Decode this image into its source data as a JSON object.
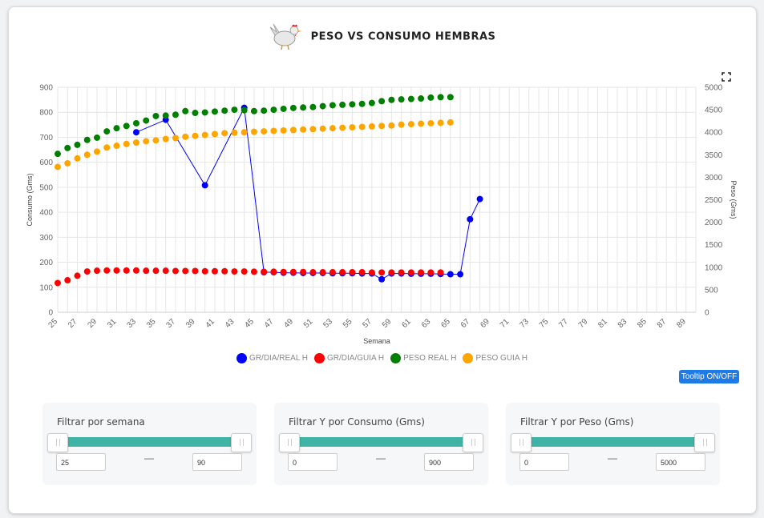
{
  "title": "PESO VS CONSUMO HEMBRAS",
  "tooltip_button": "Tooltip ON/OFF",
  "filters": [
    {
      "label": "Filtrar por semana",
      "min_value": "25",
      "max_value": "90",
      "separator": "—"
    },
    {
      "label": "Filtrar Y por Consumo (Gms)",
      "min_value": "0",
      "max_value": "900",
      "separator": "—"
    },
    {
      "label": "Filtrar Y por Peso (Gms)",
      "min_value": "0",
      "max_value": "5000",
      "separator": "—"
    }
  ],
  "chart_data": {
    "type": "line",
    "xlabel": "Semana",
    "ylabel": "Consumo (Gms)",
    "y2label": "Peso (Gms)",
    "xlim": [
      25,
      90
    ],
    "ylim": [
      0,
      900
    ],
    "y2lim": [
      0,
      5000
    ],
    "x_ticks": [
      25,
      27,
      29,
      31,
      33,
      35,
      37,
      39,
      41,
      43,
      45,
      47,
      49,
      51,
      53,
      55,
      57,
      59,
      61,
      63,
      65,
      67,
      69,
      71,
      73,
      75,
      77,
      79,
      81,
      83,
      85,
      87,
      89
    ],
    "y_ticks": [
      0,
      100,
      200,
      300,
      400,
      500,
      600,
      700,
      800,
      900
    ],
    "y2_ticks": [
      0,
      500,
      1000,
      1500,
      2000,
      2500,
      3000,
      3500,
      4000,
      4500,
      5000
    ],
    "legend_position": "bottom",
    "grid": true,
    "series": [
      {
        "name": "GR/DIA/REAL H",
        "color": "#0000ff",
        "axis": "left",
        "connect": true,
        "points": [
          [
            33,
            720
          ],
          [
            36,
            770
          ],
          [
            40,
            508
          ],
          [
            44,
            818
          ],
          [
            46,
            160
          ],
          [
            47,
            160
          ],
          [
            48,
            158
          ],
          [
            49,
            158
          ],
          [
            50,
            157
          ],
          [
            51,
            157
          ],
          [
            52,
            157
          ],
          [
            53,
            156
          ],
          [
            54,
            156
          ],
          [
            55,
            156
          ],
          [
            56,
            155
          ],
          [
            57,
            155
          ],
          [
            58,
            132
          ],
          [
            59,
            155
          ],
          [
            60,
            155
          ],
          [
            61,
            154
          ],
          [
            62,
            154
          ],
          [
            63,
            154
          ],
          [
            64,
            153
          ],
          [
            65,
            152
          ],
          [
            66,
            152
          ],
          [
            67,
            372
          ],
          [
            68,
            453
          ]
        ]
      },
      {
        "name": "GR/DIA/GUIA H",
        "color": "#ff0000",
        "axis": "left",
        "connect": false,
        "points": [
          [
            25,
            117
          ],
          [
            26,
            128
          ],
          [
            27,
            146
          ],
          [
            28,
            163
          ],
          [
            29,
            166
          ],
          [
            30,
            167
          ],
          [
            31,
            167
          ],
          [
            32,
            167
          ],
          [
            33,
            167
          ],
          [
            34,
            166
          ],
          [
            35,
            166
          ],
          [
            36,
            166
          ],
          [
            37,
            165
          ],
          [
            38,
            165
          ],
          [
            39,
            165
          ],
          [
            40,
            164
          ],
          [
            41,
            164
          ],
          [
            42,
            164
          ],
          [
            43,
            163
          ],
          [
            44,
            163
          ],
          [
            45,
            162
          ],
          [
            46,
            162
          ],
          [
            47,
            162
          ],
          [
            48,
            161
          ],
          [
            49,
            161
          ],
          [
            50,
            161
          ],
          [
            51,
            160
          ],
          [
            52,
            160
          ],
          [
            53,
            160
          ],
          [
            54,
            160
          ],
          [
            55,
            160
          ],
          [
            56,
            160
          ],
          [
            57,
            159
          ],
          [
            58,
            159
          ],
          [
            59,
            159
          ],
          [
            60,
            159
          ],
          [
            61,
            159
          ],
          [
            62,
            159
          ],
          [
            63,
            159
          ],
          [
            64,
            159
          ]
        ]
      },
      {
        "name": "PESO REAL H",
        "color": "#008000",
        "axis": "right",
        "connect": false,
        "points": [
          [
            25,
            3520
          ],
          [
            26,
            3650
          ],
          [
            27,
            3720
          ],
          [
            28,
            3830
          ],
          [
            29,
            3880
          ],
          [
            30,
            4020
          ],
          [
            31,
            4090
          ],
          [
            32,
            4140
          ],
          [
            33,
            4200
          ],
          [
            34,
            4260
          ],
          [
            35,
            4360
          ],
          [
            36,
            4370
          ],
          [
            37,
            4390
          ],
          [
            38,
            4470
          ],
          [
            39,
            4430
          ],
          [
            40,
            4440
          ],
          [
            41,
            4460
          ],
          [
            42,
            4480
          ],
          [
            43,
            4500
          ],
          [
            44,
            4490
          ],
          [
            45,
            4470
          ],
          [
            46,
            4480
          ],
          [
            47,
            4500
          ],
          [
            48,
            4520
          ],
          [
            49,
            4540
          ],
          [
            50,
            4550
          ],
          [
            51,
            4560
          ],
          [
            52,
            4580
          ],
          [
            53,
            4600
          ],
          [
            54,
            4610
          ],
          [
            55,
            4620
          ],
          [
            56,
            4630
          ],
          [
            57,
            4650
          ],
          [
            58,
            4690
          ],
          [
            59,
            4720
          ],
          [
            60,
            4730
          ],
          [
            61,
            4740
          ],
          [
            62,
            4750
          ],
          [
            63,
            4770
          ],
          [
            64,
            4780
          ],
          [
            65,
            4780
          ]
        ]
      },
      {
        "name": "PESO GUIA H",
        "color": "#ffa500",
        "axis": "right",
        "connect": false,
        "points": [
          [
            25,
            3230
          ],
          [
            26,
            3310
          ],
          [
            27,
            3420
          ],
          [
            28,
            3500
          ],
          [
            29,
            3570
          ],
          [
            30,
            3660
          ],
          [
            31,
            3700
          ],
          [
            32,
            3740
          ],
          [
            33,
            3770
          ],
          [
            34,
            3800
          ],
          [
            35,
            3820
          ],
          [
            36,
            3850
          ],
          [
            37,
            3870
          ],
          [
            38,
            3900
          ],
          [
            39,
            3920
          ],
          [
            40,
            3940
          ],
          [
            41,
            3960
          ],
          [
            42,
            3980
          ],
          [
            43,
            3990
          ],
          [
            44,
            4000
          ],
          [
            45,
            4010
          ],
          [
            46,
            4020
          ],
          [
            47,
            4030
          ],
          [
            48,
            4040
          ],
          [
            49,
            4050
          ],
          [
            50,
            4060
          ],
          [
            51,
            4070
          ],
          [
            52,
            4080
          ],
          [
            53,
            4090
          ],
          [
            54,
            4100
          ],
          [
            55,
            4110
          ],
          [
            56,
            4120
          ],
          [
            57,
            4130
          ],
          [
            58,
            4140
          ],
          [
            59,
            4150
          ],
          [
            60,
            4170
          ],
          [
            61,
            4180
          ],
          [
            62,
            4190
          ],
          [
            63,
            4200
          ],
          [
            64,
            4210
          ],
          [
            65,
            4220
          ]
        ]
      }
    ]
  }
}
